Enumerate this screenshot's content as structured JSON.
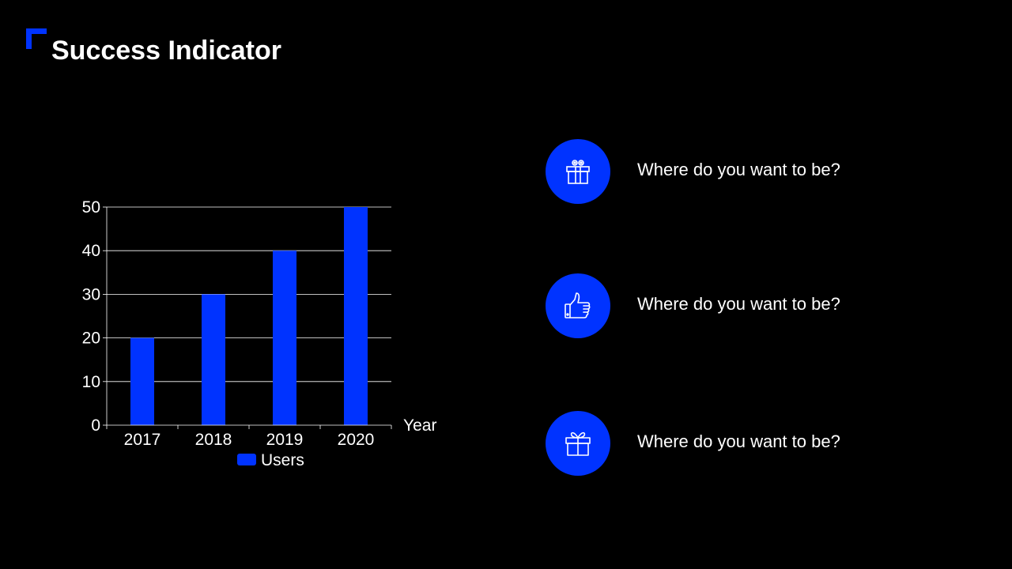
{
  "title": "Success Indicator",
  "accent_color": "#0033ff",
  "chart_data": {
    "type": "bar",
    "categories": [
      "2017",
      "2018",
      "2019",
      "2020"
    ],
    "series": [
      {
        "name": "Users",
        "values": [
          20,
          30,
          40,
          50
        ],
        "color": "#0033ff"
      }
    ],
    "xlabel": "Year",
    "ylabel": "",
    "ylim": [
      0,
      50
    ],
    "yticks": [
      0,
      10,
      20,
      30,
      40,
      50
    ],
    "grid": true,
    "legend": "bottom"
  },
  "features": [
    {
      "icon": "gift-icon",
      "text": "Where do you want to be?"
    },
    {
      "icon": "thumbs-up-icon",
      "text": "Where do you want to be?"
    },
    {
      "icon": "gift-icon",
      "text": "Where do you want to be?"
    }
  ]
}
